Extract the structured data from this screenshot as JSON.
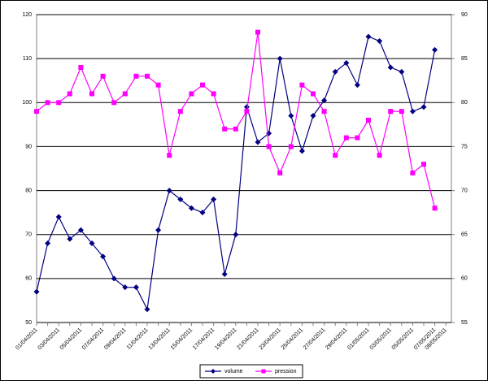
{
  "chart_data": {
    "type": "line",
    "categories": [
      "01/04/2011",
      null,
      "03/04/2011",
      null,
      "05/04/2011",
      null,
      "07/04/2011",
      null,
      "09/04/2011",
      null,
      "11/04/2011",
      null,
      "13/04/2011",
      null,
      "15/04/2011",
      null,
      "17/04/2011",
      null,
      "19/04/2011",
      null,
      "21/04/2011",
      null,
      "23/04/2011",
      null,
      "25/04/2011",
      null,
      "27/04/2011",
      null,
      "29/04/2011",
      null,
      "01/05/2011",
      null,
      "03/05/2011",
      null,
      "05/05/2011",
      null,
      "07/05/2011",
      "08/05/2011"
    ],
    "series": [
      {
        "name": "volume",
        "color": "#000080",
        "marker": "diamond",
        "axis": "y",
        "values": [
          57,
          68,
          74,
          69,
          71,
          68,
          65,
          60,
          58,
          58,
          53,
          71,
          80,
          78,
          76,
          75,
          78,
          61,
          70,
          99,
          91,
          93,
          110,
          97,
          89,
          97,
          100.5,
          107,
          109,
          104,
          115,
          114,
          108,
          107,
          98,
          99,
          112,
          null
        ]
      },
      {
        "name": "pression",
        "color": "#ff00ff",
        "marker": "square",
        "axis": "y2",
        "values": [
          79,
          80,
          80,
          81,
          84,
          81,
          83,
          80,
          81,
          83,
          83,
          82,
          74,
          79,
          81,
          82,
          81,
          77,
          77,
          79,
          88,
          75,
          72,
          75,
          82,
          81,
          79,
          74,
          76,
          76,
          78,
          74,
          79,
          79,
          72,
          73,
          68,
          null
        ]
      }
    ],
    "ylim": [
      50,
      120
    ],
    "yticks": [
      50,
      60,
      70,
      80,
      90,
      100,
      110,
      120
    ],
    "y2lim": [
      55,
      90
    ],
    "y2ticks": [
      55,
      60,
      65,
      70,
      75,
      80,
      85,
      90
    ],
    "grid": true,
    "legend": "bottom"
  }
}
